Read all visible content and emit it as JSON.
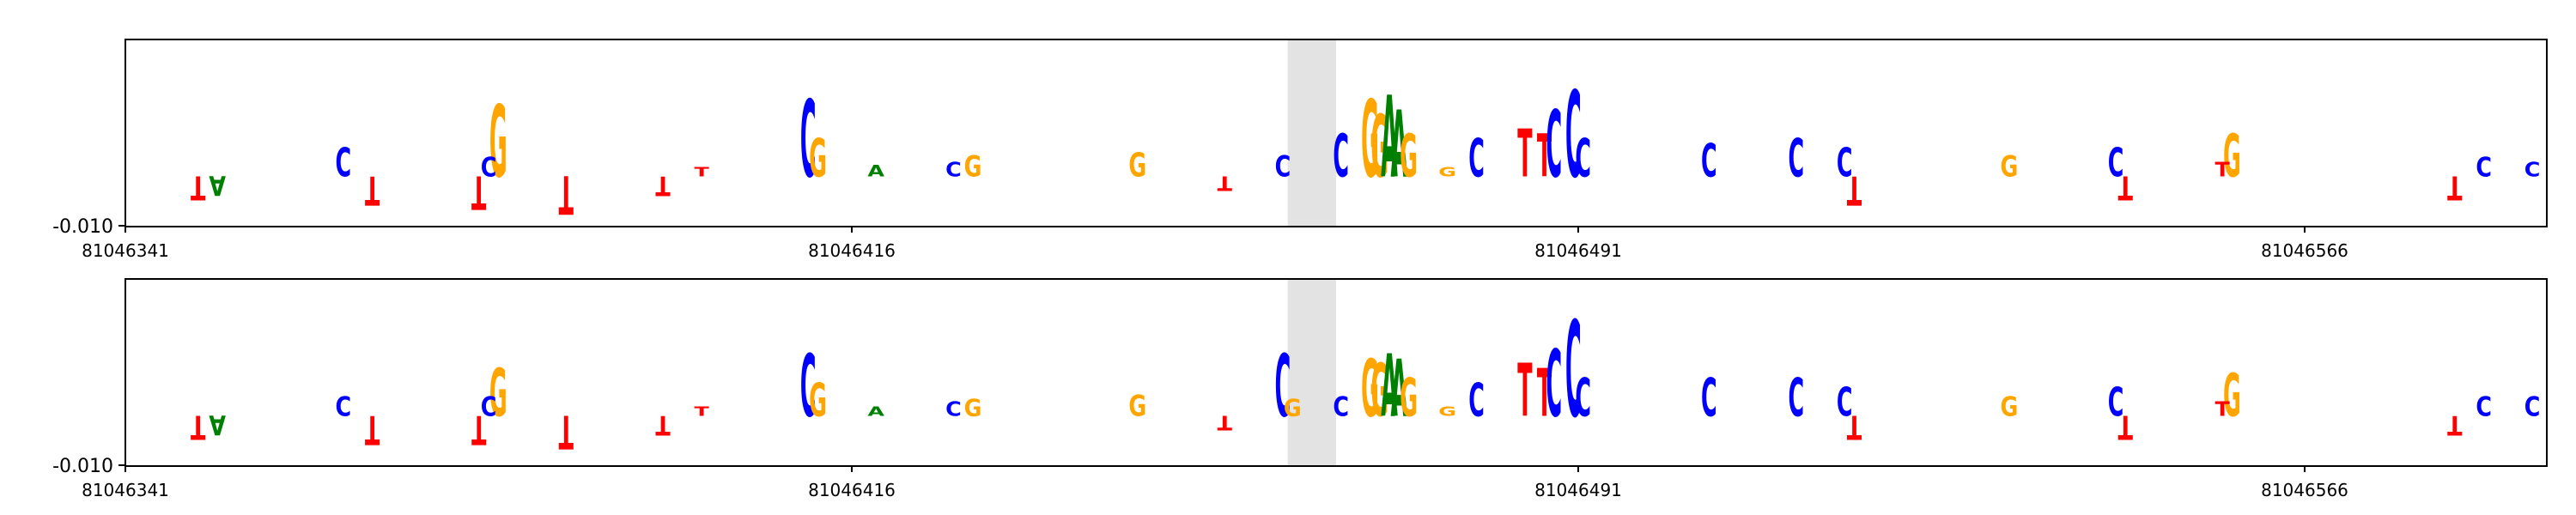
{
  "chart_data": [
    {
      "type": "sequence-logo",
      "title": "",
      "xlabel": "",
      "ylabel": "",
      "x_range": [
        81046341,
        81046591
      ],
      "x_ticks": [
        "81046341",
        "81046416",
        "81046491",
        "81046566"
      ],
      "y_ticks": [
        "-0.010"
      ],
      "highlight_range": [
        81046461,
        81046466
      ],
      "highlight_color": "#e3e3e3",
      "letters": [
        {
          "pos": 81046363,
          "base": "C",
          "h": 0.3
        },
        {
          "pos": 81046379,
          "base": "G",
          "h": 0.75
        },
        {
          "pos": 81046378,
          "base": "C",
          "h": 0.2
        },
        {
          "pos": 81046377,
          "base": "T",
          "h": -0.35
        },
        {
          "pos": 81046366,
          "base": "T",
          "h": -0.3
        },
        {
          "pos": 81046348,
          "base": "T",
          "h": -0.25
        },
        {
          "pos": 81046350,
          "base": "A",
          "h": -0.2
        },
        {
          "pos": 81046386,
          "base": "T",
          "h": -0.4
        },
        {
          "pos": 81046396,
          "base": "T",
          "h": -0.2
        },
        {
          "pos": 81046400,
          "base": "T",
          "h": 0.1
        },
        {
          "pos": 81046411,
          "base": "C",
          "h": 0.8
        },
        {
          "pos": 81046412,
          "base": "G",
          "h": 0.4
        },
        {
          "pos": 81046418,
          "base": "A",
          "h": 0.12
        },
        {
          "pos": 81046426,
          "base": "C",
          "h": 0.15
        },
        {
          "pos": 81046428,
          "base": "G",
          "h": 0.22
        },
        {
          "pos": 81046445,
          "base": "G",
          "h": 0.25
        },
        {
          "pos": 81046454,
          "base": "T",
          "h": -0.15
        },
        {
          "pos": 81046460,
          "base": "C",
          "h": 0.22
        },
        {
          "pos": 81046466,
          "base": "C",
          "h": 0.45
        },
        {
          "pos": 81046469,
          "base": "G",
          "h": 0.8
        },
        {
          "pos": 81046470,
          "base": "G",
          "h": 0.65
        },
        {
          "pos": 81046471,
          "base": "A",
          "h": 0.85
        },
        {
          "pos": 81046472,
          "base": "A",
          "h": 0.7
        },
        {
          "pos": 81046473,
          "base": "G",
          "h": 0.45
        },
        {
          "pos": 81046477,
          "base": "G",
          "h": 0.1
        },
        {
          "pos": 81046480,
          "base": "C",
          "h": 0.4
        },
        {
          "pos": 81046485,
          "base": "T",
          "h": 0.5
        },
        {
          "pos": 81046487,
          "base": "T",
          "h": 0.45
        },
        {
          "pos": 81046488,
          "base": "C",
          "h": 0.7
        },
        {
          "pos": 81046490,
          "base": "C",
          "h": 0.9
        },
        {
          "pos": 81046491,
          "base": "C",
          "h": 0.4
        },
        {
          "pos": 81046504,
          "base": "C",
          "h": 0.35
        },
        {
          "pos": 81046513,
          "base": "C",
          "h": 0.4
        },
        {
          "pos": 81046518,
          "base": "C",
          "h": 0.3
        },
        {
          "pos": 81046519,
          "base": "T",
          "h": -0.3
        },
        {
          "pos": 81046535,
          "base": "G",
          "h": 0.22
        },
        {
          "pos": 81046546,
          "base": "C",
          "h": 0.3
        },
        {
          "pos": 81046547,
          "base": "T",
          "h": -0.25
        },
        {
          "pos": 81046558,
          "base": "G",
          "h": 0.45
        },
        {
          "pos": 81046557,
          "base": "T",
          "h": 0.15
        },
        {
          "pos": 81046581,
          "base": "T",
          "h": -0.25
        },
        {
          "pos": 81046584,
          "base": "C",
          "h": 0.2
        },
        {
          "pos": 81046589,
          "base": "C",
          "h": 0.15
        }
      ]
    },
    {
      "type": "sequence-logo",
      "title": "",
      "xlabel": "",
      "ylabel": "",
      "x_range": [
        81046341,
        81046591
      ],
      "x_ticks": [
        "81046341",
        "81046416",
        "81046491",
        "81046566"
      ],
      "y_ticks": [
        "-0.010"
      ],
      "highlight_range": [
        81046461,
        81046466
      ],
      "highlight_color": "#e3e3e3",
      "letters": [
        {
          "pos": 81046363,
          "base": "C",
          "h": 0.2
        },
        {
          "pos": 81046379,
          "base": "G",
          "h": 0.5
        },
        {
          "pos": 81046378,
          "base": "C",
          "h": 0.2
        },
        {
          "pos": 81046377,
          "base": "T",
          "h": -0.3
        },
        {
          "pos": 81046366,
          "base": "T",
          "h": -0.3
        },
        {
          "pos": 81046348,
          "base": "T",
          "h": -0.25
        },
        {
          "pos": 81046350,
          "base": "A",
          "h": -0.2
        },
        {
          "pos": 81046386,
          "base": "T",
          "h": -0.35
        },
        {
          "pos": 81046396,
          "base": "T",
          "h": -0.2
        },
        {
          "pos": 81046400,
          "base": "T",
          "h": 0.1
        },
        {
          "pos": 81046411,
          "base": "C",
          "h": 0.65
        },
        {
          "pos": 81046412,
          "base": "G",
          "h": 0.35
        },
        {
          "pos": 81046418,
          "base": "A",
          "h": 0.1
        },
        {
          "pos": 81046426,
          "base": "C",
          "h": 0.15
        },
        {
          "pos": 81046428,
          "base": "G",
          "h": 0.18
        },
        {
          "pos": 81046445,
          "base": "G",
          "h": 0.22
        },
        {
          "pos": 81046454,
          "base": "T",
          "h": -0.15
        },
        {
          "pos": 81046460,
          "base": "C",
          "h": 0.65
        },
        {
          "pos": 81046461,
          "base": "G",
          "h": 0.18
        },
        {
          "pos": 81046466,
          "base": "C",
          "h": 0.2
        },
        {
          "pos": 81046469,
          "base": "G",
          "h": 0.6
        },
        {
          "pos": 81046470,
          "base": "G",
          "h": 0.55
        },
        {
          "pos": 81046471,
          "base": "A",
          "h": 0.65
        },
        {
          "pos": 81046472,
          "base": "A",
          "h": 0.6
        },
        {
          "pos": 81046473,
          "base": "G",
          "h": 0.4
        },
        {
          "pos": 81046477,
          "base": "G",
          "h": 0.1
        },
        {
          "pos": 81046480,
          "base": "C",
          "h": 0.35
        },
        {
          "pos": 81046485,
          "base": "T",
          "h": 0.55
        },
        {
          "pos": 81046487,
          "base": "T",
          "h": 0.5
        },
        {
          "pos": 81046488,
          "base": "C",
          "h": 0.7
        },
        {
          "pos": 81046490,
          "base": "C",
          "h": 1.0
        },
        {
          "pos": 81046491,
          "base": "C",
          "h": 0.4
        },
        {
          "pos": 81046504,
          "base": "C",
          "h": 0.4
        },
        {
          "pos": 81046513,
          "base": "C",
          "h": 0.4
        },
        {
          "pos": 81046518,
          "base": "C",
          "h": 0.3
        },
        {
          "pos": 81046519,
          "base": "T",
          "h": -0.25
        },
        {
          "pos": 81046535,
          "base": "G",
          "h": 0.2
        },
        {
          "pos": 81046546,
          "base": "C",
          "h": 0.3
        },
        {
          "pos": 81046547,
          "base": "T",
          "h": -0.25
        },
        {
          "pos": 81046558,
          "base": "G",
          "h": 0.45
        },
        {
          "pos": 81046557,
          "base": "T",
          "h": 0.15
        },
        {
          "pos": 81046581,
          "base": "T",
          "h": -0.2
        },
        {
          "pos": 81046584,
          "base": "C",
          "h": 0.2
        },
        {
          "pos": 81046589,
          "base": "C",
          "h": 0.2
        }
      ]
    }
  ],
  "colors": {
    "A": "#008000",
    "C": "#0000ff",
    "G": "#ffa500",
    "T": "#ff0000",
    "axis": "#000000",
    "highlight": "#e3e3e3",
    "background": "#ffffff"
  }
}
